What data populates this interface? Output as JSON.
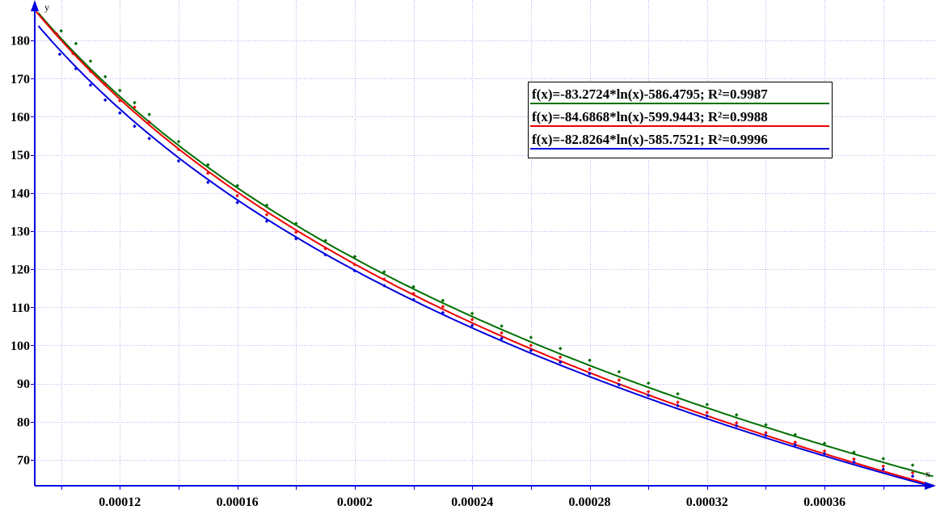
{
  "chart_data": {
    "type": "scatter",
    "title": "",
    "xlabel": "x",
    "ylabel": "y",
    "xlim": [
      9.1e-05,
      0.0003974
    ],
    "ylim": [
      63.2,
      188.5
    ],
    "grid": true,
    "legend_placement": "top-right",
    "x_ticks": [
      0.00012,
      0.00016,
      0.0002,
      0.00024,
      0.00028,
      0.00032,
      0.00036
    ],
    "x_tick_labels": [
      "0.00012",
      "0.00016",
      "0.0002",
      "0.00024",
      "0.00028",
      "0.00032",
      "0.00036"
    ],
    "x_grid": [
      0.0001,
      0.00012,
      0.00014,
      0.00016,
      0.00018,
      0.0002,
      0.00022,
      0.00024,
      0.00026,
      0.00028,
      0.0003,
      0.00032,
      0.00034,
      0.00036,
      0.00038
    ],
    "y_ticks": [
      70,
      80,
      90,
      100,
      110,
      120,
      130,
      140,
      150,
      160,
      170,
      180
    ],
    "y_tick_labels": [
      "70",
      "80",
      "90",
      "100",
      "110",
      "120",
      "130",
      "140",
      "150",
      "160",
      "170",
      "180"
    ],
    "series": [
      {
        "color": "#007000",
        "fit": {
          "a": -83.2724,
          "b": -586.4795,
          "x_range": [
            9.22e-05,
            0.000397
          ]
        },
        "legend": "f(x)=-83.2724*ln(x)-586.4795; R²=0.9987",
        "points": [
          [
            0.0001,
            182.5
          ],
          [
            0.000105,
            179.2
          ],
          [
            0.00011,
            174.6
          ],
          [
            0.000115,
            170.5
          ],
          [
            0.00012,
            166.9
          ],
          [
            0.000125,
            163.7
          ],
          [
            0.00013,
            160.6
          ],
          [
            0.00014,
            153.5
          ],
          [
            0.00015,
            147.4
          ],
          [
            0.00016,
            141.9
          ],
          [
            0.00017,
            136.8
          ],
          [
            0.00018,
            132.0
          ],
          [
            0.00019,
            127.5
          ],
          [
            0.0002,
            123.3
          ],
          [
            0.00021,
            119.3
          ],
          [
            0.00022,
            115.4
          ],
          [
            0.00023,
            111.8
          ],
          [
            0.00024,
            108.4
          ],
          [
            0.00025,
            105.1
          ],
          [
            0.00026,
            102.1
          ],
          [
            0.00027,
            99.2
          ],
          [
            0.00028,
            96.1
          ],
          [
            0.00029,
            93.1
          ],
          [
            0.0003,
            90.1
          ],
          [
            0.00031,
            87.3
          ],
          [
            0.00032,
            84.5
          ],
          [
            0.00033,
            81.8
          ],
          [
            0.00034,
            79.2
          ],
          [
            0.00035,
            76.6
          ],
          [
            0.00036,
            74.3
          ],
          [
            0.00037,
            72.0
          ],
          [
            0.00038,
            70.3
          ],
          [
            0.00039,
            68.6
          ]
        ]
      },
      {
        "color": "#ee0000",
        "fit": {
          "a": -84.6868,
          "b": -599.9443,
          "x_range": [
            9.15e-05,
            0.000397
          ]
        },
        "legend": "f(x)=-84.6868*ln(x)-599.9443; R²=0.9988",
        "points": [
          [
            9.85e-05,
            181.7
          ],
          [
            0.000104,
            176.6
          ],
          [
            0.00011,
            171.9
          ],
          [
            0.000115,
            168.5
          ],
          [
            0.00012,
            164.2
          ],
          [
            0.000125,
            162.5
          ],
          [
            0.00013,
            158.6
          ],
          [
            0.00014,
            151.4
          ],
          [
            0.00015,
            145.2
          ],
          [
            0.00016,
            139.3
          ],
          [
            0.00017,
            134.3
          ],
          [
            0.00018,
            129.7
          ],
          [
            0.00019,
            125.4
          ],
          [
            0.0002,
            121.2
          ],
          [
            0.00021,
            117.4
          ],
          [
            0.00022,
            113.6
          ],
          [
            0.00023,
            110.2
          ],
          [
            0.00024,
            106.8
          ],
          [
            0.00025,
            103.3
          ],
          [
            0.00026,
            100.0
          ],
          [
            0.00027,
            96.9
          ],
          [
            0.00028,
            93.8
          ],
          [
            0.00029,
            90.9
          ],
          [
            0.0003,
            87.9
          ],
          [
            0.00031,
            85.1
          ],
          [
            0.00032,
            82.4
          ],
          [
            0.00033,
            79.7
          ],
          [
            0.00034,
            77.1
          ],
          [
            0.00035,
            74.6
          ],
          [
            0.00036,
            72.3
          ],
          [
            0.00037,
            70.2
          ],
          [
            0.00038,
            68.3
          ],
          [
            0.00039,
            66.6
          ]
        ]
      },
      {
        "color": "#0000dd",
        "fit": {
          "a": -82.8264,
          "b": -585.7521,
          "x_range": [
            9.22e-05,
            0.000397
          ]
        },
        "legend": "f(x)=-82.8264*ln(x)-585.7521; R²=0.9996",
        "points": [
          [
            9.95e-05,
            176.4
          ],
          [
            0.000105,
            172.6
          ],
          [
            0.00011,
            168.3
          ],
          [
            0.000115,
            164.4
          ],
          [
            0.00012,
            161.0
          ],
          [
            0.000125,
            157.5
          ],
          [
            0.00013,
            154.3
          ],
          [
            0.00014,
            148.4
          ],
          [
            0.00015,
            142.8
          ],
          [
            0.00016,
            137.5
          ],
          [
            0.00017,
            132.6
          ],
          [
            0.00018,
            128.0
          ],
          [
            0.00019,
            123.8
          ],
          [
            0.0002,
            119.6
          ],
          [
            0.00021,
            115.7
          ],
          [
            0.00022,
            112.0
          ],
          [
            0.00023,
            108.6
          ],
          [
            0.00024,
            105.2
          ],
          [
            0.00025,
            101.8
          ],
          [
            0.00026,
            98.7
          ],
          [
            0.00027,
            95.6
          ],
          [
            0.00028,
            92.6
          ],
          [
            0.00029,
            89.7
          ],
          [
            0.0003,
            86.9
          ],
          [
            0.00031,
            84.2
          ],
          [
            0.00032,
            81.5
          ],
          [
            0.00033,
            78.9
          ],
          [
            0.00034,
            76.4
          ],
          [
            0.00035,
            73.9
          ],
          [
            0.00036,
            71.6
          ],
          [
            0.00037,
            69.4
          ],
          [
            0.00038,
            67.5
          ],
          [
            0.00039,
            65.7
          ]
        ]
      }
    ]
  }
}
